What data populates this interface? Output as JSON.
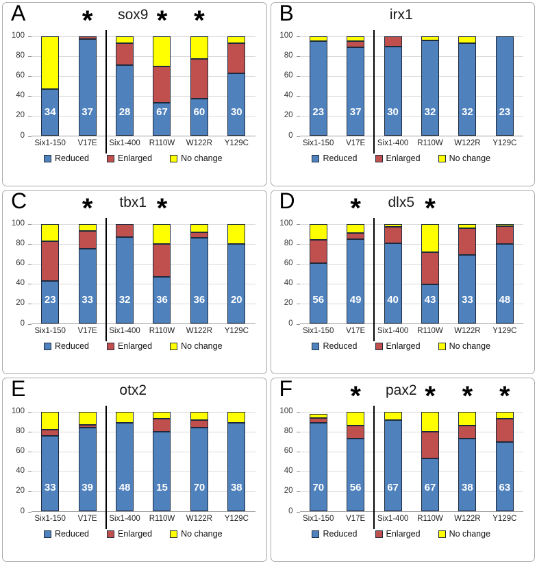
{
  "figure": {
    "asterisk_char": "*",
    "y_ticks": [
      0,
      20,
      40,
      60,
      80,
      100
    ],
    "series_colors": [
      "#4f81bd",
      "#c0504d",
      "#ffff00"
    ],
    "bar_border_color": "#1d2a3e",
    "divider_color": "#000000",
    "legend": [
      {
        "key": "reduced",
        "label": "Reduced",
        "color": "#4f81bd"
      },
      {
        "key": "enlarged",
        "label": "Enlarged",
        "color": "#c0504d"
      },
      {
        "key": "no-change",
        "label": "No change",
        "color": "#ffff00"
      }
    ]
  },
  "chart_data": [
    {
      "type": "bar",
      "stacked": true,
      "panel": "A",
      "title": "sox9",
      "ylim": [
        0,
        100
      ],
      "grid": true,
      "legend_position": "bottom",
      "categories": [
        "Six1-150",
        "V17E",
        "Six1-400",
        "R110W",
        "W122R",
        "Y129C"
      ],
      "series": [
        {
          "name": "Reduced",
          "values": [
            47,
            97,
            71,
            33,
            37,
            63
          ]
        },
        {
          "name": "Enlarged",
          "values": [
            0,
            3,
            22,
            37,
            40,
            30
          ]
        },
        {
          "name": "No change",
          "values": [
            53,
            0,
            7,
            30,
            23,
            7
          ]
        }
      ],
      "n_labels": [
        34,
        37,
        28,
        67,
        60,
        30
      ],
      "asterisks": [
        false,
        true,
        false,
        true,
        true,
        false
      ]
    },
    {
      "type": "bar",
      "stacked": true,
      "panel": "B",
      "title": "irx1",
      "ylim": [
        0,
        100
      ],
      "grid": true,
      "legend_position": "bottom",
      "categories": [
        "Six1-150",
        "V17E",
        "Six1-400",
        "R110W",
        "W122R",
        "Y129C"
      ],
      "series": [
        {
          "name": "Reduced",
          "values": [
            95,
            89,
            90,
            96,
            93,
            100
          ]
        },
        {
          "name": "Enlarged",
          "values": [
            0,
            6,
            10,
            0,
            0,
            0
          ]
        },
        {
          "name": "No change",
          "values": [
            5,
            5,
            0,
            4,
            7,
            0
          ]
        }
      ],
      "n_labels": [
        23,
        37,
        30,
        32,
        32,
        23
      ],
      "asterisks": [
        false,
        false,
        false,
        false,
        false,
        false
      ]
    },
    {
      "type": "bar",
      "stacked": true,
      "panel": "C",
      "title": "tbx1",
      "ylim": [
        0,
        100
      ],
      "grid": true,
      "legend_position": "bottom",
      "categories": [
        "Six1-150",
        "V17E",
        "Six1-400",
        "R110W",
        "W122R",
        "Y129C"
      ],
      "series": [
        {
          "name": "Reduced",
          "values": [
            43,
            75,
            87,
            47,
            86,
            80
          ]
        },
        {
          "name": "Enlarged",
          "values": [
            40,
            18,
            13,
            33,
            6,
            0
          ]
        },
        {
          "name": "No change",
          "values": [
            17,
            7,
            0,
            20,
            8,
            20
          ]
        }
      ],
      "n_labels": [
        23,
        33,
        32,
        36,
        36,
        20
      ],
      "asterisks": [
        false,
        true,
        false,
        true,
        false,
        false
      ]
    },
    {
      "type": "bar",
      "stacked": true,
      "panel": "D",
      "title": "dlx5",
      "ylim": [
        0,
        100
      ],
      "grid": true,
      "legend_position": "bottom",
      "categories": [
        "Six1-150",
        "V17E",
        "Six1-400",
        "R110W",
        "W122R",
        "Y129C"
      ],
      "series": [
        {
          "name": "Reduced",
          "values": [
            61,
            85,
            81,
            39,
            69,
            80
          ]
        },
        {
          "name": "Enlarged",
          "values": [
            23,
            6,
            16,
            33,
            27,
            18
          ]
        },
        {
          "name": "No change",
          "values": [
            16,
            9,
            3,
            28,
            4,
            2
          ]
        }
      ],
      "n_labels": [
        56,
        49,
        40,
        43,
        33,
        48
      ],
      "asterisks": [
        false,
        true,
        false,
        true,
        false,
        false
      ]
    },
    {
      "type": "bar",
      "stacked": true,
      "panel": "E",
      "title": "otx2",
      "ylim": [
        0,
        100
      ],
      "grid": true,
      "legend_position": "bottom",
      "categories": [
        "Six1-150",
        "V17E",
        "Six1-400",
        "R110W",
        "W122R",
        "Y129C"
      ],
      "series": [
        {
          "name": "Reduced",
          "values": [
            76,
            84,
            89,
            80,
            84,
            89
          ]
        },
        {
          "name": "Enlarged",
          "values": [
            6,
            3,
            0,
            13,
            8,
            0
          ]
        },
        {
          "name": "No change",
          "values": [
            18,
            13,
            11,
            7,
            8,
            11
          ]
        }
      ],
      "n_labels": [
        33,
        39,
        48,
        15,
        70,
        38
      ],
      "asterisks": [
        false,
        false,
        false,
        false,
        false,
        false
      ]
    },
    {
      "type": "bar",
      "stacked": true,
      "panel": "F",
      "title": "pax2",
      "ylim": [
        0,
        100
      ],
      "grid": true,
      "legend_position": "bottom",
      "categories": [
        "Six1-150",
        "V17E",
        "Six1-400",
        "R110W",
        "W122R",
        "Y129C"
      ],
      "series": [
        {
          "name": "Reduced",
          "values": [
            89,
            73,
            92,
            53,
            73,
            70
          ]
        },
        {
          "name": "Enlarged",
          "values": [
            5,
            13,
            0,
            27,
            13,
            23
          ]
        },
        {
          "name": "No change",
          "values": [
            4,
            14,
            8,
            20,
            14,
            7
          ]
        }
      ],
      "n_labels": [
        70,
        56,
        67,
        67,
        38,
        63
      ],
      "asterisks": [
        false,
        true,
        false,
        true,
        true,
        true
      ]
    }
  ]
}
